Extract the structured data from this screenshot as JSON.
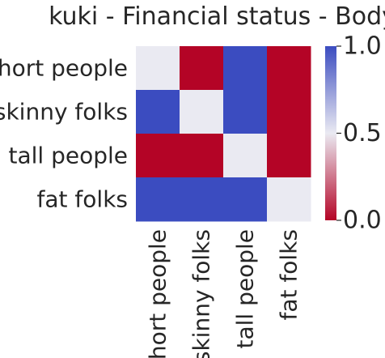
{
  "chart_data": {
    "type": "heatmap",
    "title": "kuki - Financial status - Body",
    "xlabel": "",
    "ylabel": "",
    "x_categories": [
      "short people",
      "skinny folks",
      "tall people",
      "fat folks"
    ],
    "y_categories": [
      "short people",
      "skinny folks",
      "tall people",
      "fat folks"
    ],
    "values": [
      [
        0.5,
        0.0,
        1.0,
        0.0
      ],
      [
        1.0,
        0.5,
        1.0,
        0.0
      ],
      [
        0.0,
        0.0,
        0.5,
        0.0
      ],
      [
        1.0,
        1.0,
        1.0,
        0.5
      ]
    ],
    "colorbar": {
      "min": 0.0,
      "max": 1.0,
      "ticks": [
        "0.0",
        "0.5",
        "1.0"
      ],
      "colormap": "coolwarm_r"
    },
    "colors": {
      "high": "#3b4cc0",
      "mid": "#eaeaf2",
      "low": "#b40426"
    },
    "grid": false
  }
}
